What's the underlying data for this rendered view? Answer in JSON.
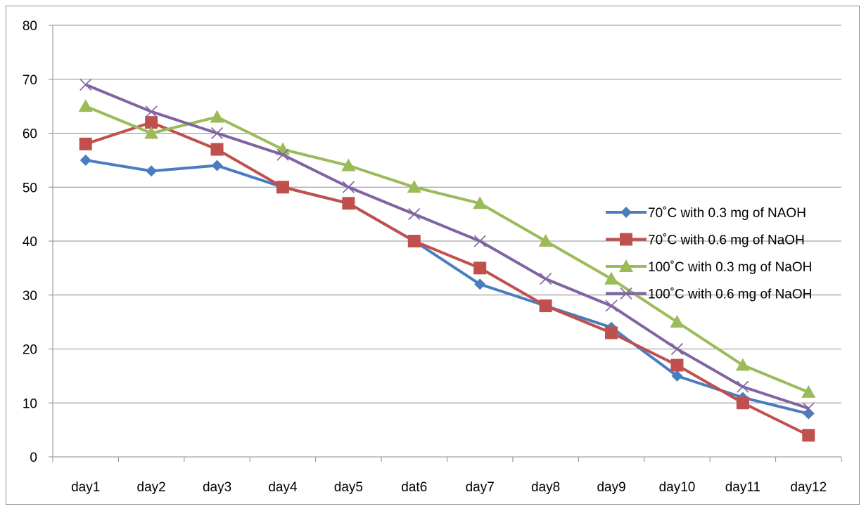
{
  "chart_data": {
    "type": "line",
    "categories": [
      "day1",
      "day2",
      "day3",
      "day4",
      "day5",
      "dat6",
      "day7",
      "day8",
      "day9",
      "day10",
      "day11",
      "day12"
    ],
    "ylim": [
      0,
      80
    ],
    "yticks": [
      0,
      10,
      20,
      30,
      40,
      50,
      60,
      70,
      80
    ],
    "grid": true,
    "legend_position": "right",
    "series": [
      {
        "name": "70˚C with 0.3 mg of NAOH",
        "color": "#4a7dbf",
        "marker": "diamond",
        "values": [
          55,
          53,
          54,
          50,
          47,
          40,
          32,
          28,
          24,
          15,
          11,
          8
        ]
      },
      {
        "name": "70˚C with 0.6 mg of NaOH",
        "color": "#c0504d",
        "marker": "square",
        "values": [
          58,
          62,
          57,
          50,
          47,
          40,
          35,
          28,
          23,
          17,
          10,
          4
        ]
      },
      {
        "name": "100˚C with 0.3 mg of NaOH",
        "color": "#9bbb59",
        "marker": "triangle",
        "values": [
          65,
          60,
          63,
          57,
          54,
          50,
          47,
          40,
          33,
          25,
          17,
          12
        ]
      },
      {
        "name": "100˚C with 0.6 mg of NaOH",
        "color": "#8064a2",
        "marker": "x",
        "values": [
          69,
          64,
          60,
          56,
          50,
          45,
          40,
          33,
          28,
          20,
          13,
          9
        ]
      }
    ]
  }
}
